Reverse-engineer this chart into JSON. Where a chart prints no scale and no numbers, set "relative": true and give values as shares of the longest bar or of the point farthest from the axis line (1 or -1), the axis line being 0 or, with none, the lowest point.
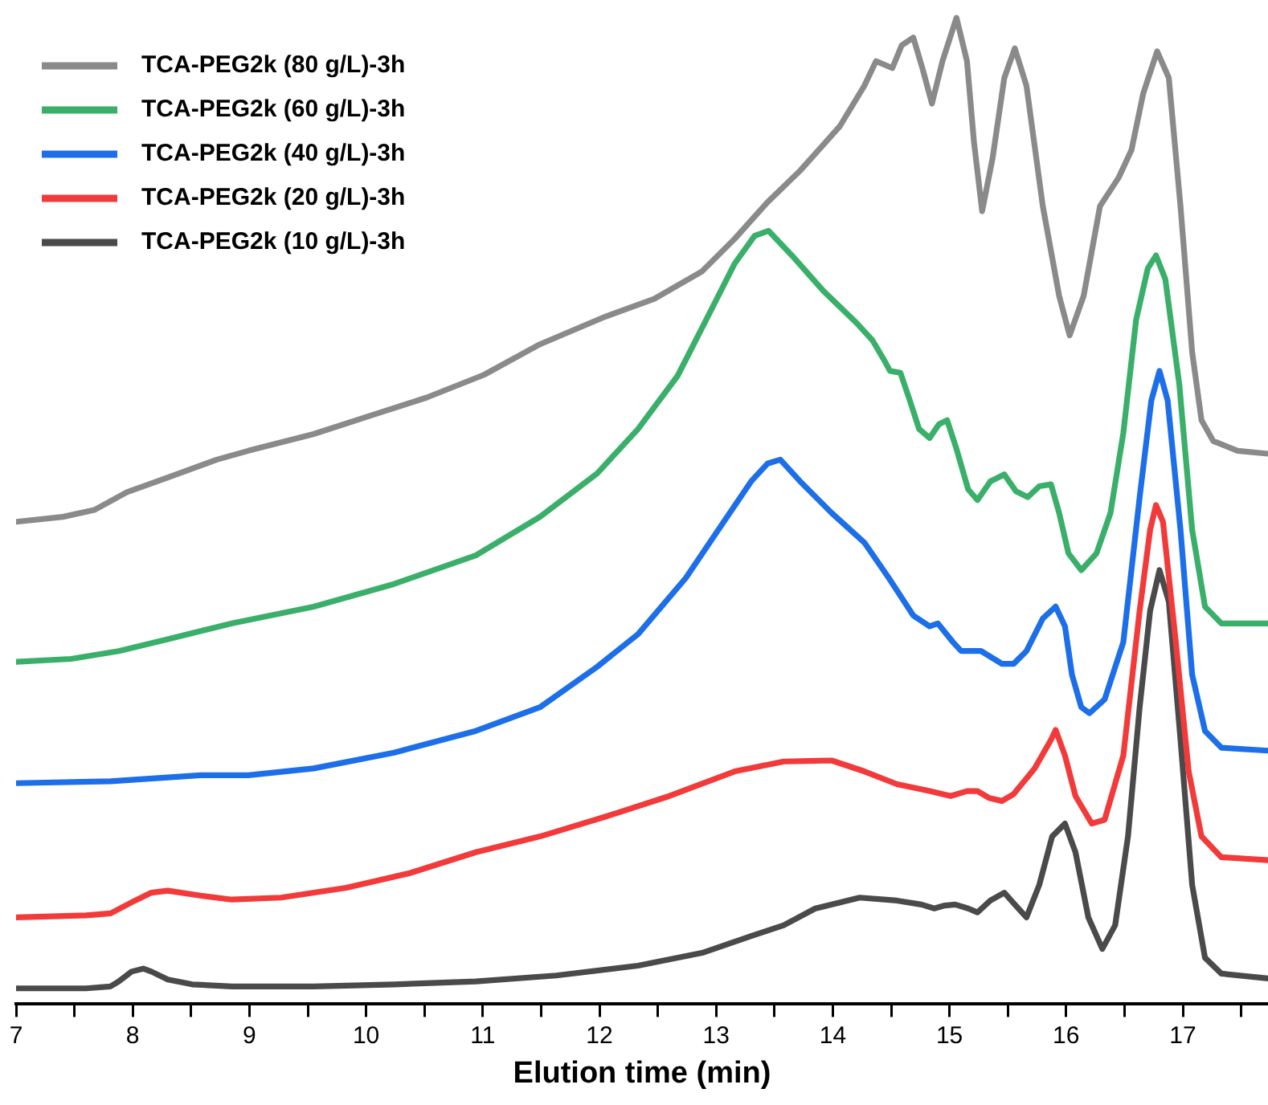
{
  "chart_data": {
    "type": "line",
    "xlabel": "Elution time (min)",
    "relative": true,
    "xlim": [
      7,
      17.73
    ],
    "xticks": [
      7,
      {
        "value": 7.5,
        "label": null
      },
      8,
      {
        "value": 8.5,
        "label": null
      },
      9,
      {
        "value": 9.5,
        "label": null
      },
      10,
      {
        "value": 10.5,
        "label": null
      },
      11,
      {
        "value": 11.5,
        "label": null
      },
      12,
      {
        "value": 12.5,
        "label": null
      },
      13,
      {
        "value": 13.5,
        "label": null
      },
      14,
      {
        "value": 14.5,
        "label": null
      },
      15,
      {
        "value": 15.5,
        "label": null
      },
      16,
      {
        "value": 16.5,
        "label": null
      },
      17,
      {
        "value": 17.5,
        "label": null
      }
    ],
    "grid": false,
    "legend": "top left",
    "marker": "none",
    "line_style": "solid",
    "tick_labels": "x",
    "series": [
      {
        "name": "TCA-PEG2k (80 g/L)-3h",
        "color": "#8a8a8a",
        "x": [
          7.0,
          7.4,
          7.67,
          7.95,
          8.3,
          8.72,
          8.99,
          9.55,
          10.1,
          10.52,
          11.01,
          11.49,
          12.05,
          12.47,
          12.88,
          13.16,
          13.44,
          13.72,
          14.06,
          14.27,
          14.37,
          14.51,
          14.59,
          14.69,
          14.77,
          14.85,
          14.94,
          15.06,
          15.15,
          15.21,
          15.28,
          15.37,
          15.47,
          15.56,
          15.66,
          15.8,
          15.94,
          16.03,
          16.15,
          16.29,
          16.45,
          16.56,
          16.66,
          16.78,
          16.88,
          16.98,
          17.08,
          17.16,
          17.26,
          17.47,
          17.73
        ],
        "values": [
          0.489,
          0.494,
          0.501,
          0.519,
          0.534,
          0.552,
          0.561,
          0.578,
          0.599,
          0.615,
          0.638,
          0.669,
          0.697,
          0.715,
          0.743,
          0.776,
          0.813,
          0.845,
          0.89,
          0.931,
          0.956,
          0.949,
          0.972,
          0.98,
          0.948,
          0.913,
          0.956,
          1,
          0.956,
          0.874,
          0.804,
          0.858,
          0.939,
          0.969,
          0.931,
          0.809,
          0.718,
          0.678,
          0.718,
          0.809,
          0.838,
          0.866,
          0.923,
          0.966,
          0.939,
          0.809,
          0.661,
          0.592,
          0.571,
          0.561,
          0.558
        ]
      },
      {
        "name": "TCA-PEG2k (60 g/L)-3h",
        "color": "#3aaf6a",
        "x": [
          7.0,
          7.47,
          7.88,
          8.3,
          8.85,
          9.55,
          10.24,
          10.94,
          11.49,
          11.98,
          12.33,
          12.67,
          12.95,
          13.16,
          13.33,
          13.45,
          13.65,
          13.92,
          14.2,
          14.34,
          14.44,
          14.49,
          14.58,
          14.66,
          14.74,
          14.83,
          14.91,
          14.98,
          15.06,
          15.16,
          15.24,
          15.35,
          15.47,
          15.57,
          15.67,
          15.77,
          15.87,
          15.94,
          16.02,
          16.13,
          16.26,
          16.38,
          16.49,
          16.6,
          16.7,
          16.77,
          16.85,
          16.97,
          17.08,
          17.19,
          17.33,
          17.73
        ],
        "values": [
          0.347,
          0.35,
          0.358,
          0.37,
          0.386,
          0.403,
          0.426,
          0.455,
          0.494,
          0.538,
          0.583,
          0.637,
          0.702,
          0.751,
          0.779,
          0.784,
          0.759,
          0.723,
          0.691,
          0.673,
          0.653,
          0.642,
          0.64,
          0.612,
          0.583,
          0.574,
          0.588,
          0.592,
          0.563,
          0.522,
          0.511,
          0.53,
          0.537,
          0.52,
          0.514,
          0.525,
          0.527,
          0.498,
          0.457,
          0.44,
          0.457,
          0.498,
          0.579,
          0.694,
          0.746,
          0.759,
          0.735,
          0.628,
          0.481,
          0.403,
          0.386,
          0.386
        ]
      },
      {
        "name": "TCA-PEG2k (40 g/L)-3h",
        "color": "#1c6fe8",
        "x": [
          7.0,
          7.81,
          8.58,
          8.99,
          9.55,
          10.24,
          10.94,
          11.49,
          11.98,
          12.33,
          12.74,
          13.02,
          13.3,
          13.44,
          13.55,
          13.72,
          13.99,
          14.27,
          14.48,
          14.69,
          14.83,
          14.9,
          15.03,
          15.1,
          15.27,
          15.45,
          15.55,
          15.66,
          15.8,
          15.91,
          15.99,
          16.05,
          16.13,
          16.2,
          16.33,
          16.49,
          16.63,
          16.73,
          16.8,
          16.87,
          16.98,
          17.08,
          17.19,
          17.33,
          17.73
        ],
        "values": [
          0.224,
          0.226,
          0.232,
          0.232,
          0.239,
          0.255,
          0.277,
          0.301,
          0.342,
          0.375,
          0.432,
          0.481,
          0.53,
          0.548,
          0.552,
          0.53,
          0.498,
          0.468,
          0.432,
          0.394,
          0.383,
          0.386,
          0.367,
          0.358,
          0.358,
          0.345,
          0.345,
          0.358,
          0.391,
          0.403,
          0.383,
          0.334,
          0.301,
          0.295,
          0.309,
          0.367,
          0.514,
          0.612,
          0.642,
          0.612,
          0.481,
          0.334,
          0.277,
          0.26,
          0.257
        ]
      },
      {
        "name": "TCA-PEG2k (20 g/L)-3h",
        "color": "#f23a3a",
        "x": [
          7.0,
          7.6,
          7.81,
          8.02,
          8.16,
          8.3,
          8.58,
          8.85,
          9.27,
          9.83,
          10.38,
          10.94,
          11.49,
          12.05,
          12.6,
          13.16,
          13.58,
          13.99,
          14.27,
          14.55,
          14.83,
          15.01,
          15.15,
          15.24,
          15.34,
          15.45,
          15.55,
          15.73,
          15.87,
          15.91,
          15.99,
          16.08,
          16.22,
          16.33,
          16.49,
          16.63,
          16.72,
          16.77,
          16.83,
          16.94,
          17.05,
          17.16,
          17.33,
          17.73
        ],
        "values": [
          0.088,
          0.09,
          0.092,
          0.105,
          0.113,
          0.115,
          0.11,
          0.106,
          0.108,
          0.118,
          0.133,
          0.154,
          0.17,
          0.19,
          0.211,
          0.236,
          0.246,
          0.247,
          0.236,
          0.223,
          0.216,
          0.211,
          0.216,
          0.216,
          0.209,
          0.206,
          0.213,
          0.239,
          0.268,
          0.278,
          0.252,
          0.211,
          0.183,
          0.187,
          0.252,
          0.399,
          0.481,
          0.506,
          0.489,
          0.367,
          0.236,
          0.17,
          0.149,
          0.146
        ]
      },
      {
        "name": "TCA-PEG2k (10 g/L)-3h",
        "color": "#4a4a4a",
        "x": [
          7.0,
          7.6,
          7.81,
          7.88,
          7.99,
          8.09,
          8.16,
          8.3,
          8.51,
          8.85,
          9.55,
          10.24,
          10.94,
          11.63,
          12.33,
          12.88,
          13.3,
          13.58,
          13.85,
          14.23,
          14.55,
          14.76,
          14.87,
          14.96,
          15.05,
          15.16,
          15.24,
          15.35,
          15.47,
          15.56,
          15.66,
          15.77,
          15.88,
          15.99,
          16.08,
          16.19,
          16.31,
          16.42,
          16.53,
          16.63,
          16.72,
          16.8,
          16.88,
          16.98,
          17.08,
          17.19,
          17.33,
          17.73
        ],
        "values": [
          0.016,
          0.016,
          0.018,
          0.023,
          0.033,
          0.036,
          0.033,
          0.025,
          0.02,
          0.018,
          0.018,
          0.02,
          0.023,
          0.029,
          0.039,
          0.052,
          0.069,
          0.08,
          0.097,
          0.108,
          0.105,
          0.101,
          0.097,
          0.1,
          0.101,
          0.097,
          0.093,
          0.105,
          0.113,
          0.101,
          0.088,
          0.121,
          0.17,
          0.183,
          0.154,
          0.088,
          0.056,
          0.08,
          0.17,
          0.301,
          0.399,
          0.44,
          0.408,
          0.268,
          0.121,
          0.047,
          0.031,
          0.026
        ]
      }
    ]
  }
}
